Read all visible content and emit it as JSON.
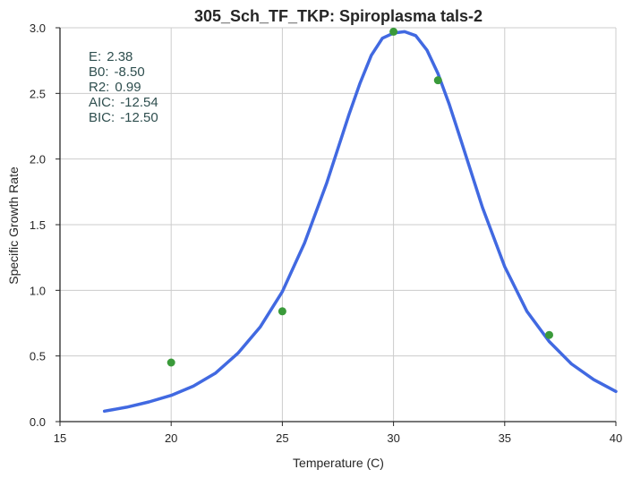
{
  "chart_data": {
    "type": "scatter",
    "title": "305_Sch_TF_TKP: Spiroplasma tals-2",
    "xlabel": "Temperature (C)",
    "ylabel": "Specific Growth Rate",
    "xlim": [
      15,
      40
    ],
    "ylim": [
      0,
      3.0
    ],
    "xticks": [
      "15",
      "20",
      "25",
      "30",
      "35",
      "40"
    ],
    "yticks": [
      "0.0",
      "0.5",
      "1.0",
      "1.5",
      "2.0",
      "2.5",
      "3.0"
    ],
    "grid": true,
    "stats": [
      {
        "label": "E:",
        "value": "2.38"
      },
      {
        "label": "B0:",
        "value": "-8.50"
      },
      {
        "label": "R2:",
        "value": "0.99"
      },
      {
        "label": "AIC:",
        "value": "-12.54"
      },
      {
        "label": "BIC:",
        "value": "-12.50"
      }
    ],
    "series": [
      {
        "kind": "points",
        "color": "#3a9a3a",
        "x": [
          20,
          25,
          30,
          32,
          37
        ],
        "y": [
          0.45,
          0.84,
          2.97,
          2.6,
          0.66
        ]
      },
      {
        "kind": "line",
        "color": "#4169e1",
        "x": [
          17,
          18,
          19,
          20,
          21,
          22,
          23,
          24,
          25,
          26,
          27,
          28,
          28.5,
          29,
          29.5,
          30,
          30.5,
          31,
          31.5,
          32,
          32.5,
          33,
          34,
          35,
          36,
          37,
          38,
          39,
          40
        ],
        "y": [
          0.08,
          0.11,
          0.15,
          0.2,
          0.27,
          0.37,
          0.52,
          0.72,
          0.99,
          1.36,
          1.82,
          2.34,
          2.58,
          2.79,
          2.92,
          2.96,
          2.97,
          2.94,
          2.83,
          2.65,
          2.42,
          2.16,
          1.63,
          1.18,
          0.84,
          0.61,
          0.44,
          0.32,
          0.23
        ]
      }
    ]
  }
}
